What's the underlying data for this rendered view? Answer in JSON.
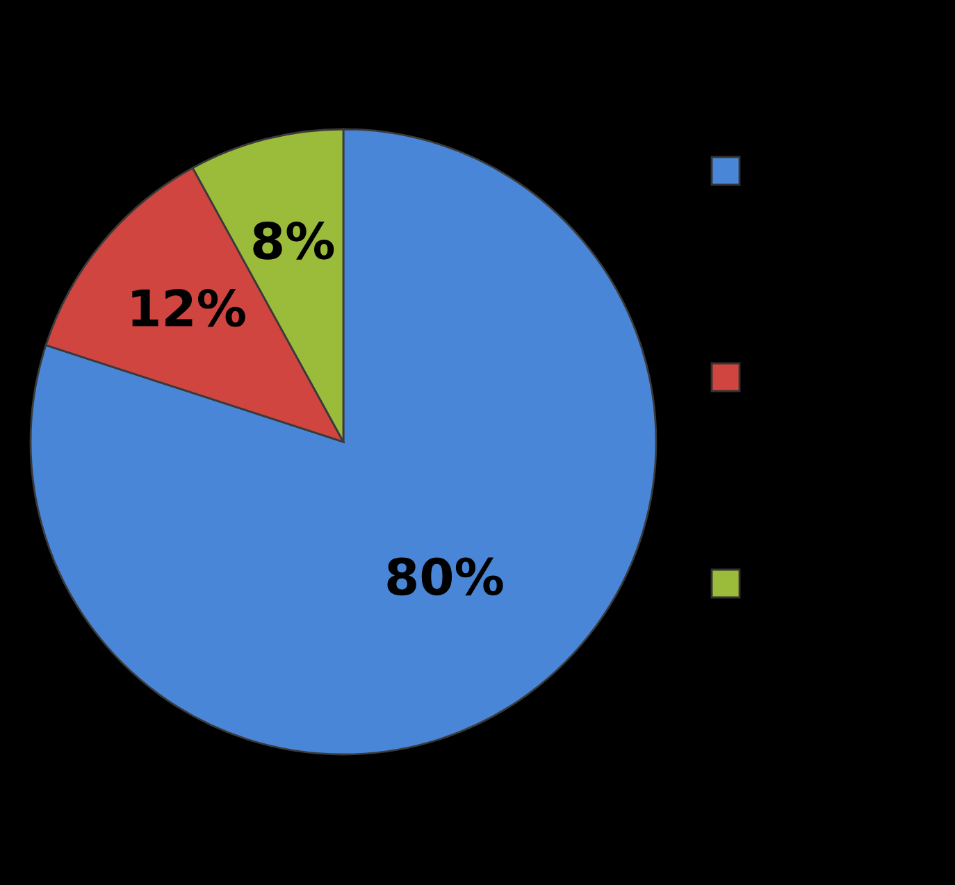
{
  "chart_data": {
    "type": "pie",
    "categories": [
      null,
      null,
      null
    ],
    "values": [
      80,
      12,
      8
    ],
    "colors": [
      "#4a86d8",
      "#d0453f",
      "#9bbb3a"
    ],
    "value_labels": [
      "80%",
      "12%",
      "8%"
    ]
  }
}
